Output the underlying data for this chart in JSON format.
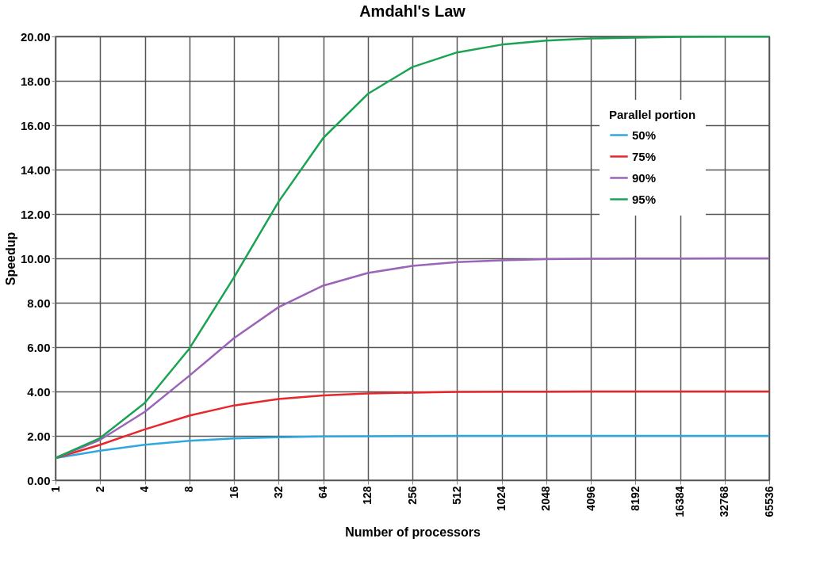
{
  "chart_data": {
    "type": "line",
    "title": "Amdahl's Law",
    "xlabel": "Number of processors",
    "ylabel": "Speedup",
    "legend_title": "Parallel portion",
    "categories": [
      "1",
      "2",
      "4",
      "8",
      "16",
      "32",
      "64",
      "128",
      "256",
      "512",
      "1024",
      "2048",
      "4096",
      "8192",
      "16384",
      "32768",
      "65536"
    ],
    "series": [
      {
        "name": "50%",
        "color": "#2ea8e0",
        "values": [
          1.0,
          1.33,
          1.6,
          1.78,
          1.88,
          1.94,
          1.97,
          1.98,
          1.99,
          2.0,
          2.0,
          2.0,
          2.0,
          2.0,
          2.0,
          2.0,
          2.0
        ]
      },
      {
        "name": "75%",
        "color": "#e8262c",
        "values": [
          1.0,
          1.6,
          2.29,
          2.91,
          3.37,
          3.66,
          3.82,
          3.91,
          3.95,
          3.98,
          3.99,
          3.99,
          4.0,
          4.0,
          4.0,
          4.0,
          4.0
        ]
      },
      {
        "name": "90%",
        "color": "#9b64b8",
        "values": [
          1.0,
          1.82,
          3.08,
          4.71,
          6.4,
          7.8,
          8.77,
          9.34,
          9.66,
          9.83,
          9.91,
          9.96,
          9.98,
          9.99,
          9.99,
          10.0,
          10.0
        ]
      },
      {
        "name": "95%",
        "color": "#1aa352",
        "values": [
          1.0,
          1.9,
          3.48,
          5.93,
          9.14,
          12.55,
          15.42,
          17.41,
          18.62,
          19.28,
          19.63,
          19.81,
          19.91,
          19.95,
          19.98,
          19.99,
          19.99
        ]
      }
    ],
    "ylim": [
      0,
      20
    ],
    "yticks": [
      {
        "value": 0,
        "label": "0.00"
      },
      {
        "value": 2,
        "label": "2.00"
      },
      {
        "value": 4,
        "label": "4.00"
      },
      {
        "value": 6,
        "label": "6.00"
      },
      {
        "value": 8,
        "label": "8.00"
      },
      {
        "value": 10,
        "label": "10.00"
      },
      {
        "value": 12,
        "label": "12.00"
      },
      {
        "value": 14,
        "label": "14.00"
      },
      {
        "value": 16,
        "label": "16.00"
      },
      {
        "value": 18,
        "label": "18.00"
      },
      {
        "value": 20,
        "label": "20.00"
      }
    ],
    "grid": true,
    "legend": "top right",
    "marker": "none",
    "line_style": "solid"
  }
}
